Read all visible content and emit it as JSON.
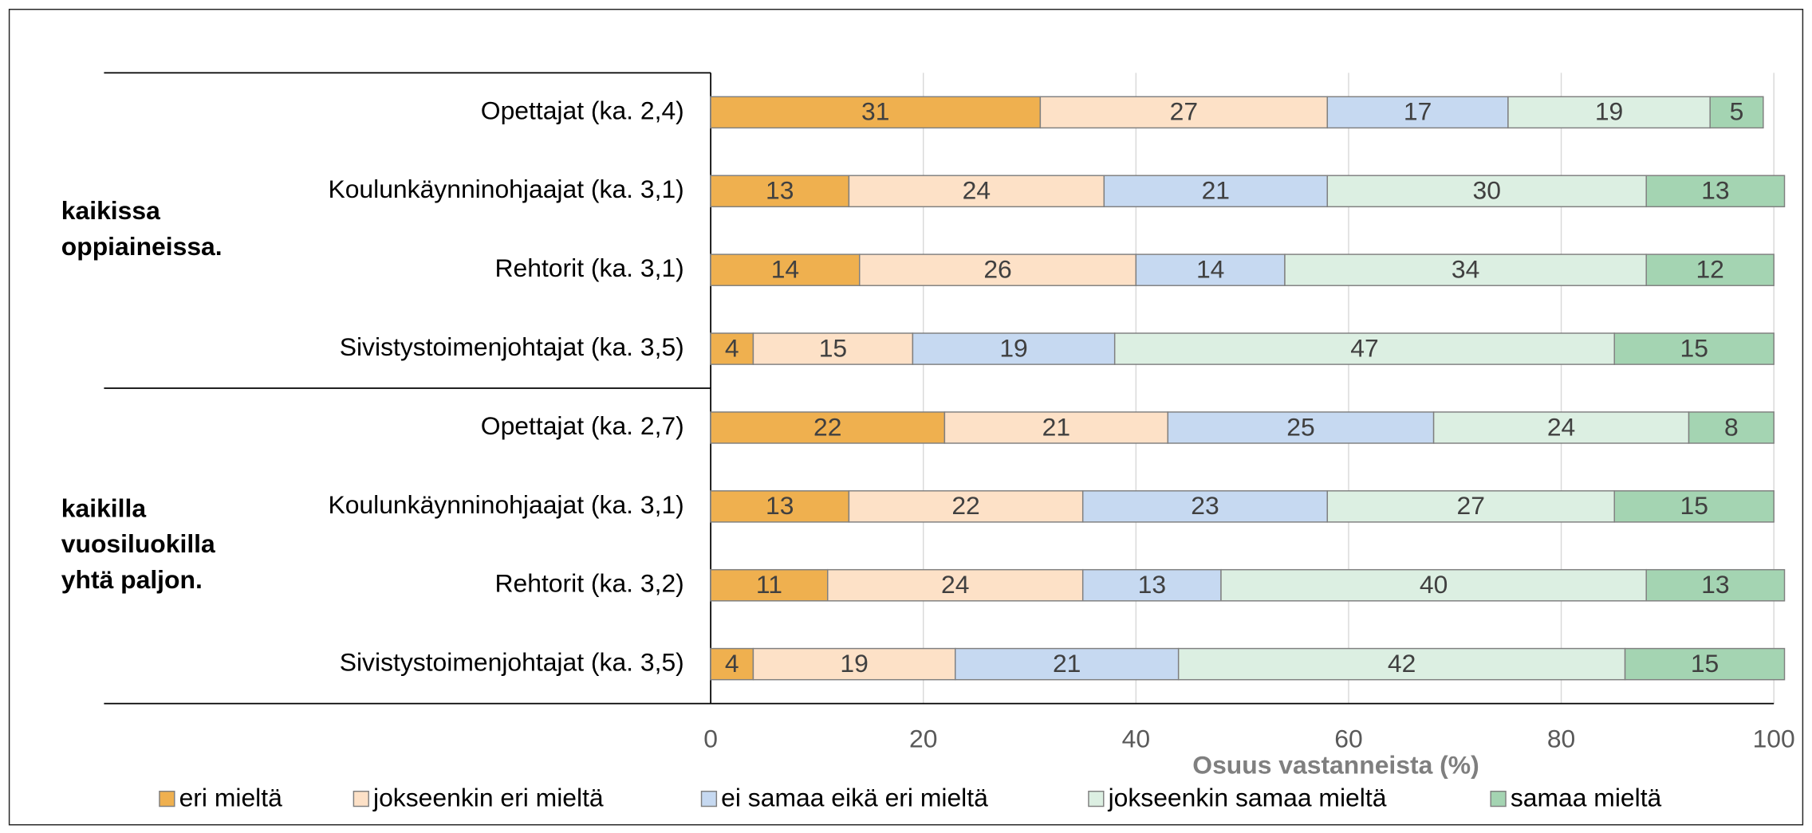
{
  "chart_data": {
    "type": "stacked-barh",
    "x_label": "Osuus vastanneista (%)",
    "groups": [
      {
        "label": [
          "kaikissa",
          "oppiaineissa."
        ]
      },
      {
        "label": [
          "kaikilla",
          "vuosiluokilla",
          "yhtä paljon."
        ]
      }
    ],
    "categories": [
      "Opettajat (ka. 2,4)",
      "Koulunkäynninohjaajat (ka. 3,1)",
      "Rehtorit (ka. 3,1)",
      "Sivistystoimenjohtajat (ka. 3,5)",
      "Opettajat (ka. 2,7)",
      "Koulunkäynninohjaajat (ka. 3,1)",
      "Rehtorit (ka. 3,2)",
      "Sivistystoimenjohtajat (ka. 3,5)"
    ],
    "series": [
      {
        "name": "eri mieltä",
        "color": "#efb04f",
        "values": [
          31,
          13,
          14,
          4,
          22,
          13,
          11,
          4
        ]
      },
      {
        "name": "jokseenkin eri mieltä",
        "color": "#fde1c7",
        "values": [
          27,
          24,
          26,
          15,
          21,
          22,
          24,
          19
        ]
      },
      {
        "name": "ei samaa eikä eri mieltä",
        "color": "#c6d9f1",
        "values": [
          17,
          21,
          14,
          19,
          25,
          23,
          13,
          21
        ]
      },
      {
        "name": "jokseenkin samaa mieltä",
        "color": "#dcefe2",
        "values": [
          19,
          30,
          34,
          47,
          24,
          27,
          40,
          42
        ]
      },
      {
        "name": "samaa mieltä",
        "color": "#a4d4b2",
        "values": [
          5,
          13,
          12,
          15,
          8,
          15,
          13,
          15
        ]
      }
    ],
    "xlim": [
      0,
      100
    ],
    "xticks": [
      0,
      20,
      40,
      60,
      80,
      100
    ],
    "grid": true
  }
}
